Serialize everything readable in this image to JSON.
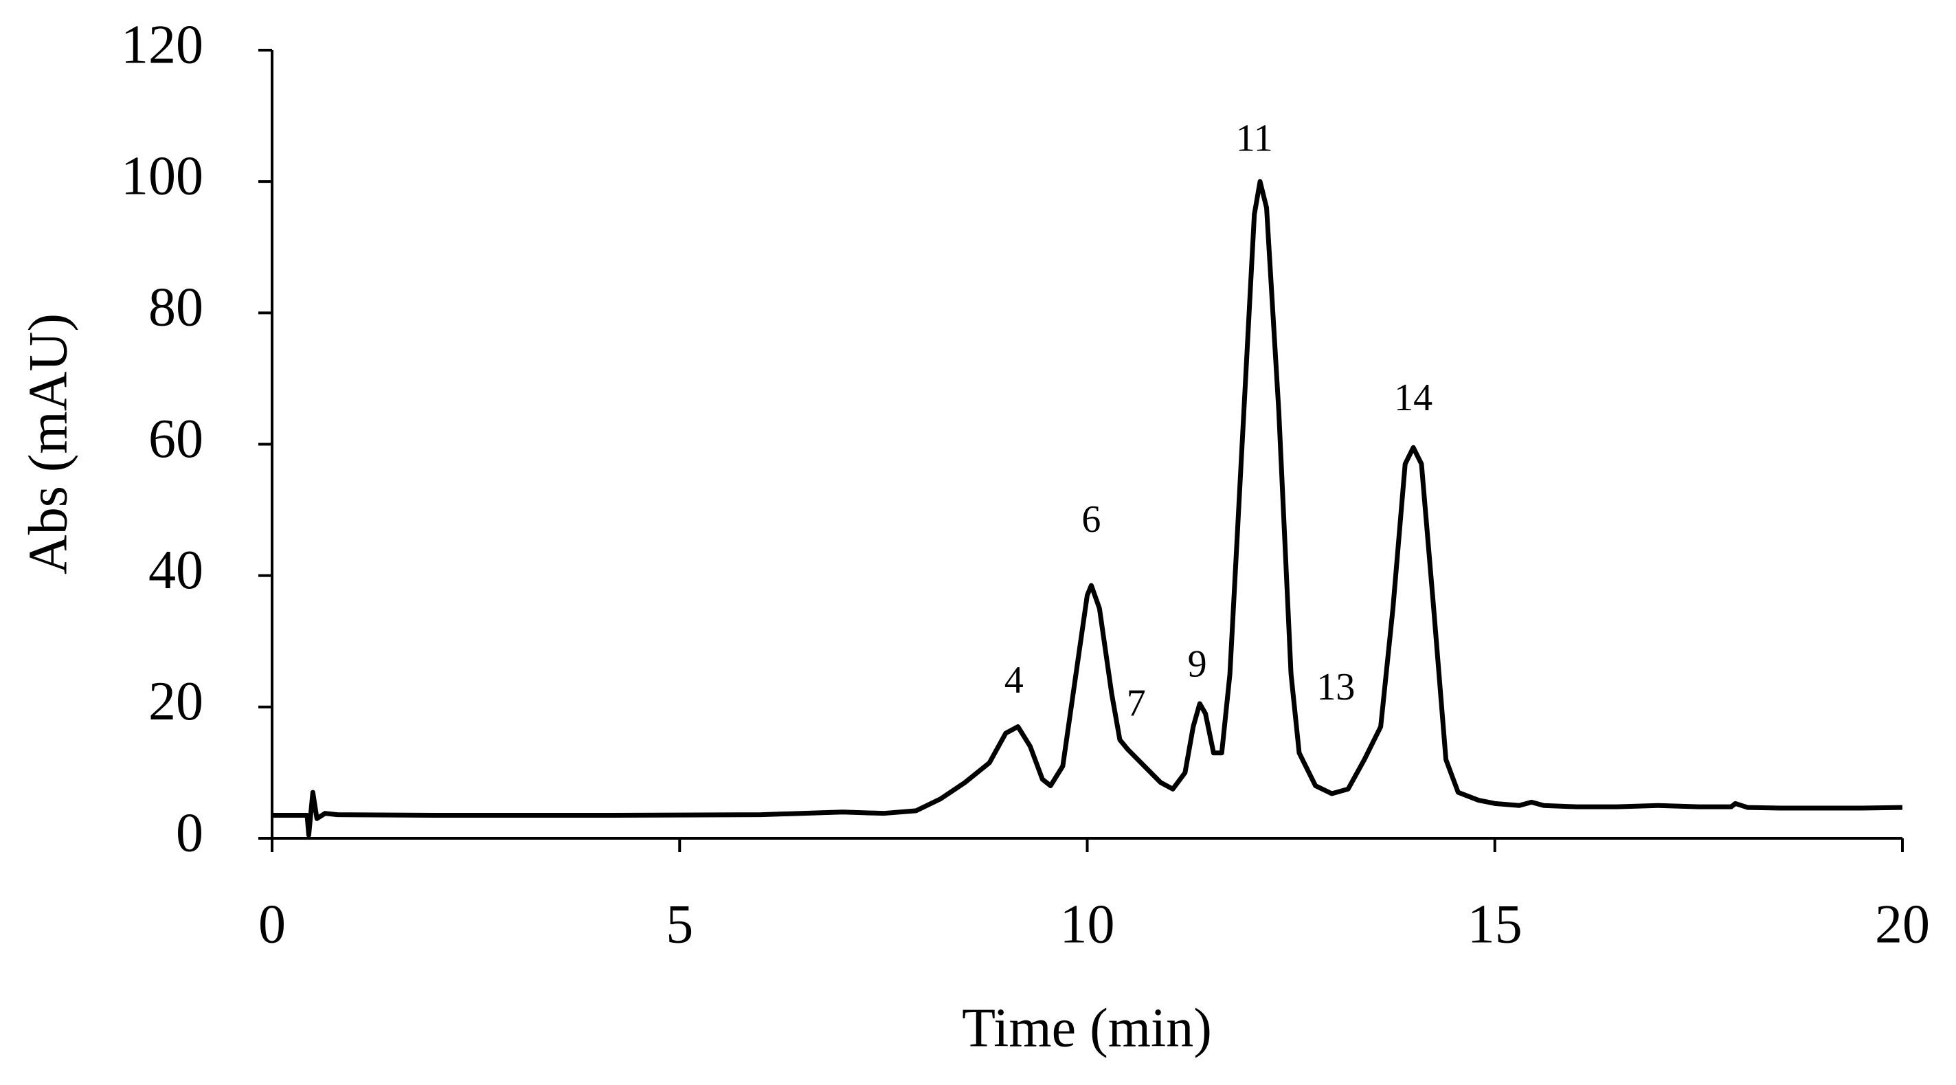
{
  "chart_data": {
    "type": "line",
    "x_label": "Time (min)",
    "y_label": "Abs (mAU)",
    "xlim": [
      0,
      20
    ],
    "xticks": [
      0,
      5,
      10,
      15,
      20
    ],
    "ylim": [
      0,
      120
    ],
    "yticks": [
      0,
      20,
      40,
      60,
      80,
      100,
      120
    ],
    "color": "#000000",
    "x": [
      0,
      0.43,
      0.45,
      0.5,
      0.55,
      0.65,
      0.8,
      2,
      4,
      6,
      7,
      7.5,
      7.9,
      8.2,
      8.5,
      8.8,
      9.0,
      9.15,
      9.3,
      9.45,
      9.55,
      9.7,
      9.85,
      10.0,
      10.05,
      10.15,
      10.3,
      10.4,
      10.5,
      10.7,
      10.9,
      11.05,
      11.2,
      11.3,
      11.38,
      11.45,
      11.55,
      11.65,
      11.75,
      11.9,
      12.05,
      12.12,
      12.2,
      12.35,
      12.5,
      12.6,
      12.8,
      13.0,
      13.2,
      13.4,
      13.6,
      13.75,
      13.9,
      14.0,
      14.1,
      14.25,
      14.4,
      14.55,
      14.8,
      15.0,
      15.3,
      15.45,
      15.6,
      16,
      16.5,
      17,
      17.5,
      17.9,
      17.95,
      18.1,
      18.5,
      19,
      19.5,
      20
    ],
    "values": [
      3.5,
      3.5,
      0.5,
      7,
      3,
      3.8,
      3.6,
      3.5,
      3.5,
      3.6,
      4.0,
      3.8,
      4.2,
      6,
      8.5,
      11.5,
      16,
      17,
      14,
      9,
      8,
      11,
      24,
      37,
      38.5,
      35,
      22,
      15,
      13.5,
      11,
      8.5,
      7.5,
      10,
      17,
      20.5,
      19,
      13,
      13,
      25,
      60,
      95,
      100,
      96,
      65,
      25,
      13,
      8,
      6.8,
      7.5,
      12,
      17,
      35,
      57,
      59.5,
      57,
      35,
      12,
      7,
      5.8,
      5.3,
      5.0,
      5.5,
      5.0,
      4.8,
      4.8,
      5.0,
      4.8,
      4.8,
      5.3,
      4.7,
      4.6,
      4.6,
      4.6,
      4.7
    ],
    "annotations": [
      {
        "text": "4",
        "x": 9.1,
        "y": 23.5
      },
      {
        "text": "6",
        "x": 10.05,
        "y": 48
      },
      {
        "text": "7",
        "x": 10.6,
        "y": 20
      },
      {
        "text": "9",
        "x": 11.35,
        "y": 26
      },
      {
        "text": "11",
        "x": 12.05,
        "y": 106
      },
      {
        "text": "13",
        "x": 13.05,
        "y": 22.5
      },
      {
        "text": "14",
        "x": 14.0,
        "y": 66.5
      }
    ]
  }
}
